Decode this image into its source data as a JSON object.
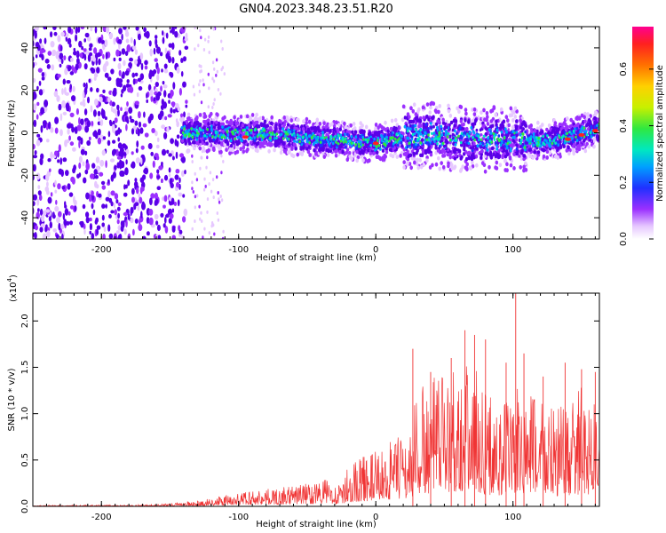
{
  "figure_title": "GN04.2023.348.23.51.R20",
  "colors": {
    "snr_line": "#f03535",
    "colormap": [
      "#ffffff",
      "#e6c8ff",
      "#9b30ff",
      "#5a00e8",
      "#2030ff",
      "#00a0ff",
      "#00e8c0",
      "#30e840",
      "#c8f000",
      "#ffd000",
      "#ff7000",
      "#ff2020",
      "#ff0090"
    ]
  },
  "chart_data": [
    {
      "type": "heatmap",
      "xlabel": "Height of straight line (km)",
      "ylabel": "Frequency (Hz)",
      "xlim": [
        -250,
        163
      ],
      "ylim": [
        -50,
        50
      ],
      "x_ticks": [
        -200,
        -100,
        0,
        100
      ],
      "y_ticks": [
        -40,
        -20,
        0,
        20,
        40
      ],
      "colorbar": {
        "label": "Normalized spectral amplitude",
        "range": [
          0,
          0.75
        ],
        "ticks": [
          "0.0",
          "0.2",
          "0.4",
          "0.6"
        ]
      },
      "band_center_freq": [
        [
          -140,
          0
        ],
        [
          -120,
          0
        ],
        [
          -100,
          -1
        ],
        [
          -80,
          0
        ],
        [
          -60,
          -2
        ],
        [
          -40,
          -3
        ],
        [
          -20,
          -4
        ],
        [
          0,
          -5
        ],
        [
          20,
          -2
        ],
        [
          40,
          -1
        ],
        [
          60,
          -3
        ],
        [
          80,
          -3
        ],
        [
          100,
          -3
        ],
        [
          120,
          -4
        ],
        [
          140,
          -2
        ],
        [
          163,
          2
        ]
      ],
      "noise_region_x": [
        -250,
        -138
      ]
    },
    {
      "type": "line",
      "xlabel": "Height of straight line (km)",
      "ylabel": "SNR (10 * v/v)",
      "y_multiplier": "(x10",
      "y_multiplier_exp": "4",
      "y_multiplier_close": ")",
      "xlim": [
        -250,
        163
      ],
      "ylim": [
        0,
        2.3
      ],
      "x_ticks": [
        -200,
        -100,
        0,
        100
      ],
      "y_ticks": [
        "0.0",
        "0.5",
        "1.0",
        "1.5",
        "2.0"
      ],
      "envelope": [
        [
          -250,
          0.01
        ],
        [
          -160,
          0.02
        ],
        [
          -130,
          0.06
        ],
        [
          -110,
          0.12
        ],
        [
          -90,
          0.18
        ],
        [
          -70,
          0.2
        ],
        [
          -50,
          0.26
        ],
        [
          -35,
          0.3
        ],
        [
          -25,
          0.22
        ],
        [
          -20,
          0.45
        ],
        [
          -10,
          0.55
        ],
        [
          0,
          0.6
        ],
        [
          15,
          0.75
        ],
        [
          25,
          0.85
        ],
        [
          30,
          1.3
        ],
        [
          40,
          1.35
        ],
        [
          50,
          1.5
        ],
        [
          60,
          1.6
        ],
        [
          70,
          1.6
        ],
        [
          80,
          1.3
        ],
        [
          90,
          1.1
        ],
        [
          100,
          1.3
        ],
        [
          110,
          1.2
        ],
        [
          120,
          1.3
        ],
        [
          130,
          1.1
        ],
        [
          140,
          1.1
        ],
        [
          150,
          1.3
        ],
        [
          163,
          1.2
        ]
      ],
      "peaks": [
        [
          102,
          2.3
        ],
        [
          65,
          1.9
        ],
        [
          72,
          1.85
        ],
        [
          80,
          1.8
        ],
        [
          27,
          1.7
        ],
        [
          55,
          1.6
        ],
        [
          40,
          1.45
        ],
        [
          108,
          1.65
        ],
        [
          138,
          1.55
        ],
        [
          95,
          1.55
        ],
        [
          122,
          1.4
        ],
        [
          150,
          1.48
        ],
        [
          160,
          1.45
        ]
      ]
    }
  ]
}
